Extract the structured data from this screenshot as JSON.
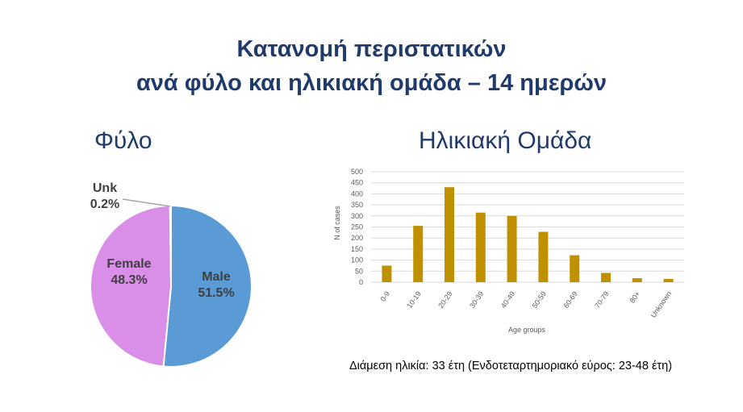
{
  "title": {
    "line1": "Κατανομή περιστατικών",
    "line2": "ανά φύλο και ηλικιακή ομάδα – 14 ημερών"
  },
  "chart_data": [
    {
      "type": "pie",
      "title": "Φύλο",
      "slices": [
        {
          "label": "Male",
          "value": 51.5,
          "value_label": "51.5%",
          "color": "#5b9bd5"
        },
        {
          "label": "Female",
          "value": 48.3,
          "value_label": "48.3%",
          "color": "#d98ee8"
        },
        {
          "label": "Unk",
          "value": 0.2,
          "value_label": "0.2%",
          "color": "#a5a5a5"
        }
      ]
    },
    {
      "type": "bar",
      "title": "Ηλικιακή Ομάδα",
      "xlabel": "Age groups",
      "ylabel": "N of cases",
      "categories": [
        "0-9",
        "10-19",
        "20-29",
        "30-39",
        "40-49",
        "50-59",
        "60-69",
        "70-79",
        "80+",
        "Unknown"
      ],
      "values": [
        75,
        255,
        430,
        315,
        300,
        228,
        122,
        42,
        18,
        15
      ],
      "ylim": [
        0,
        500
      ],
      "yticks": [
        "0",
        "50",
        "100",
        "150",
        "200",
        "250",
        "300",
        "350",
        "400",
        "450",
        "500"
      ],
      "grid": true,
      "bar_color": "#bf9000",
      "gridline_color": "#d9d9d9"
    }
  ],
  "note": "Διάμεση ηλικία: 33 έτη (Ενδοτεταρτημοριακό εύρος: 23-48 έτη)"
}
